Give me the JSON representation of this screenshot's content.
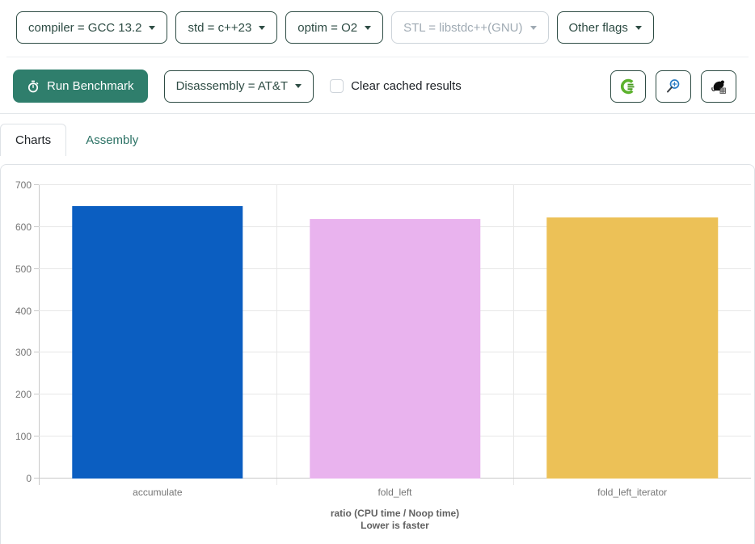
{
  "toolbar_top": {
    "dropdowns": [
      {
        "label": "compiler = GCC 13.2",
        "disabled": false
      },
      {
        "label": "std = c++23",
        "disabled": false
      },
      {
        "label": "optim = O2",
        "disabled": false
      },
      {
        "label": "STL = libstdc++(GNU)",
        "disabled": true
      },
      {
        "label": "Other flags",
        "disabled": false
      }
    ],
    "caret_icon": "caret-down-icon"
  },
  "toolbar_actions": {
    "run_button_label": "Run Benchmark",
    "run_button_icon": "stopwatch-icon",
    "disassembly_dropdown_label": "Disassembly = AT&T",
    "clear_cache_label": "Clear cached results",
    "clear_cache_checked": false,
    "icon_buttons": [
      "compiler-explorer-icon",
      "magnifier-icon",
      "rat-icon"
    ],
    "colors": {
      "run_button": "#2f7e6c",
      "compiler_explorer_green": "#5cb22d",
      "magnifier_blue": "#2b7cc4"
    }
  },
  "tabs": [
    {
      "label": "Charts",
      "active": true
    },
    {
      "label": "Assembly",
      "active": false
    }
  ],
  "chart_data": {
    "type": "bar",
    "categories": [
      "accumulate",
      "fold_left",
      "fold_left_iterator"
    ],
    "values": [
      650,
      619,
      622
    ],
    "bar_colors": [
      "#0b5ec1",
      "#e9b3ee",
      "#ecc157"
    ],
    "title": "",
    "xlabel_line1": "ratio (CPU time / Noop time)",
    "xlabel_line2": "Lower is faster",
    "ylabel": "",
    "ylim": [
      0,
      700
    ],
    "yticks": [
      0,
      100,
      200,
      300,
      400,
      500,
      600,
      700
    ],
    "grid": true,
    "legend": "none",
    "bar_width_fraction_of_slot": 0.72
  }
}
